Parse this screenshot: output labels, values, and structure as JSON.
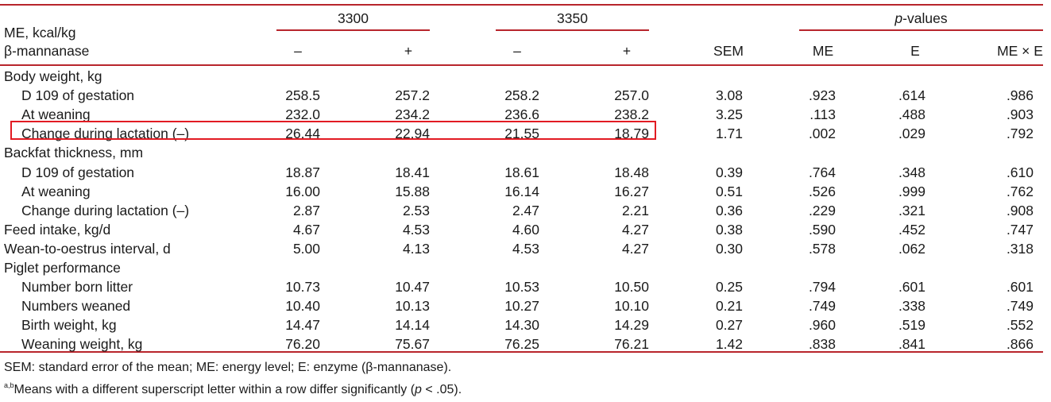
{
  "header": {
    "me_label": "ME, kcal/kg",
    "enzyme_label": "β-mannanase",
    "group_3300": "3300",
    "group_3350": "3350",
    "pvalues_label": "p-values",
    "pvalues_p": "p",
    "pvalues_rest": "-values",
    "cols": [
      "–",
      "+",
      "–",
      "+",
      "SEM",
      "ME",
      "E",
      "ME × E"
    ]
  },
  "rows": [
    {
      "label": "Body weight, kg",
      "indent": false,
      "values": []
    },
    {
      "label": "D 109 of gestation",
      "indent": true,
      "values": [
        "258.5",
        "257.2",
        "258.2",
        "257.0",
        "3.08",
        ".923",
        ".614",
        ".986"
      ]
    },
    {
      "label": "At weaning",
      "indent": true,
      "values": [
        "232.0",
        "234.2",
        "236.6",
        "238.2",
        "3.25",
        ".113",
        ".488",
        ".903"
      ]
    },
    {
      "label": "Change during lactation (–)",
      "indent": true,
      "values": [
        "26.44",
        "22.94",
        "21.55",
        "18.79",
        "1.71",
        ".002",
        ".029",
        ".792"
      ]
    },
    {
      "label": "Backfat thickness, mm",
      "indent": false,
      "values": []
    },
    {
      "label": "D 109 of gestation",
      "indent": true,
      "values": [
        "18.87",
        "18.41",
        "18.61",
        "18.48",
        "0.39",
        ".764",
        ".348",
        ".610"
      ]
    },
    {
      "label": "At weaning",
      "indent": true,
      "values": [
        "16.00",
        "15.88",
        "16.14",
        "16.27",
        "0.51",
        ".526",
        ".999",
        ".762"
      ]
    },
    {
      "label": "Change during lactation (–)",
      "indent": true,
      "values": [
        "2.87",
        "2.53",
        "2.47",
        "2.21",
        "0.36",
        ".229",
        ".321",
        ".908"
      ]
    },
    {
      "label": "Feed intake, kg/d",
      "indent": false,
      "values": [
        "4.67",
        "4.53",
        "4.60",
        "4.27",
        "0.38",
        ".590",
        ".452",
        ".747"
      ]
    },
    {
      "label": "Wean-to-oestrus interval, d",
      "indent": false,
      "values": [
        "5.00",
        "4.13",
        "4.53",
        "4.27",
        "0.30",
        ".578",
        ".062",
        ".318"
      ]
    },
    {
      "label": "Piglet performance",
      "indent": false,
      "values": []
    },
    {
      "label": "Number born litter",
      "indent": true,
      "values": [
        "10.73",
        "10.47",
        "10.53",
        "10.50",
        "0.25",
        ".794",
        ".601",
        ".601"
      ]
    },
    {
      "label": "Numbers weaned",
      "indent": true,
      "values": [
        "10.40",
        "10.13",
        "10.27",
        "10.10",
        "0.21",
        ".749",
        ".338",
        ".749"
      ]
    },
    {
      "label": "Birth weight, kg",
      "indent": true,
      "values": [
        "14.47",
        "14.14",
        "14.30",
        "14.29",
        "0.27",
        ".960",
        ".519",
        ".552"
      ]
    },
    {
      "label": "Weaning weight, kg",
      "indent": true,
      "values": [
        "76.20",
        "75.67",
        "76.25",
        "76.21",
        "1.42",
        ".838",
        ".841",
        ".866"
      ]
    }
  ],
  "footnotes": {
    "line1": "SEM: standard error of the mean; ME: energy level; E: enzyme (β-mannanase).",
    "sup": "a,b",
    "line2_text": "Means with a different superscript letter within a row differ significantly (",
    "line2_p": "p",
    "line2_end": " < .05)."
  },
  "colors": {
    "rule": "#b8252c",
    "highlight": "#e21b23"
  }
}
